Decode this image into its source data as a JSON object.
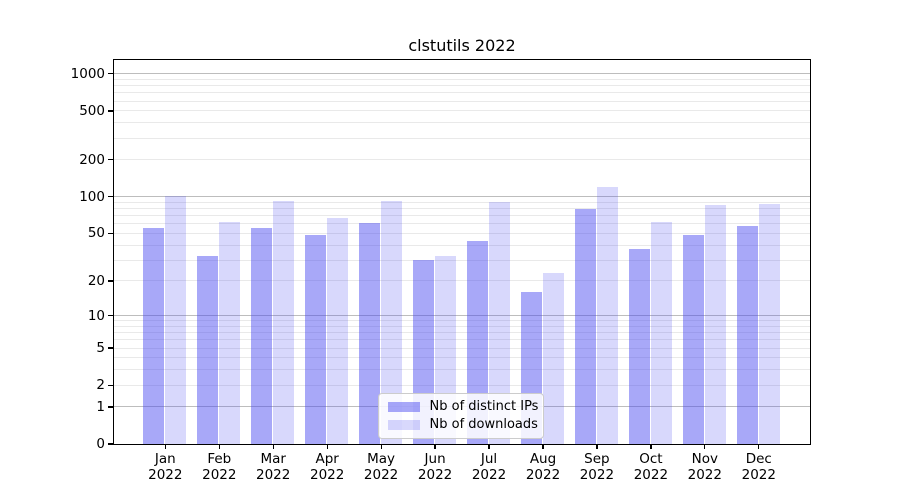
{
  "chart_data": {
    "type": "bar",
    "title": "clstutils 2022",
    "categories": [
      "Jan 2022",
      "Feb 2022",
      "Mar 2022",
      "Apr 2022",
      "May 2022",
      "Jun 2022",
      "Jul 2022",
      "Aug 2022",
      "Sep 2022",
      "Oct 2022",
      "Nov 2022",
      "Dec 2022"
    ],
    "series": [
      {
        "name": "Nb of distinct IPs",
        "color": "rgba(70,70,240,0.47)",
        "values": [
          55,
          32,
          55,
          48,
          60,
          30,
          43,
          16,
          78,
          37,
          48,
          57
        ]
      },
      {
        "name": "Nb of downloads",
        "color": "rgba(70,70,240,0.21)",
        "values": [
          100,
          62,
          91,
          66,
          91,
          32,
          89,
          23,
          118,
          61,
          85,
          86
        ]
      }
    ],
    "xlabel": "",
    "ylabel": "",
    "yscale": "log1p",
    "yticks": [
      0,
      1,
      2,
      5,
      10,
      20,
      50,
      100,
      200,
      500,
      1000
    ],
    "ylim": [
      0,
      1300
    ],
    "grid": "on",
    "legend_position": "lower center"
  },
  "colors": {
    "major_grid": "#bdbdbd",
    "minor_grid": "#e9e9e9",
    "spine": "#000000",
    "bar_ips": "rgba(70,70,240,0.47)",
    "bar_downloads": "rgba(70,70,240,0.21)"
  }
}
